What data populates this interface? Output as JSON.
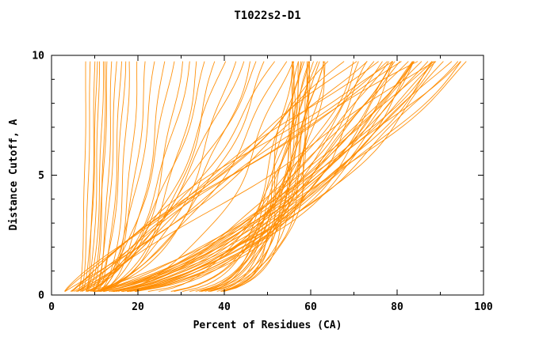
{
  "chart_data": {
    "type": "line",
    "title": "T1022s2-D1",
    "xlabel": "Percent of Residues (CA)",
    "ylabel": "Distance Cutoff, A",
    "xlim": [
      0,
      100
    ],
    "ylim": [
      0,
      10
    ],
    "x_major_ticks": [
      0,
      20,
      40,
      60,
      80,
      100
    ],
    "x_minor_step": 10,
    "y_major_ticks": [
      0,
      5,
      10
    ],
    "y_minor_step": 1,
    "grid": false,
    "legend": "none",
    "line_color": "#FF8C00",
    "background": "#FFFFFF",
    "curve_model": "Family of ~94 model GDT curves. Each entry is [x_start, x_end, shape]; x(y) = x_start + (x_end - x_start) * (y / 9.75)^shape for y in [0.15, 9.75].",
    "curves": [
      [
        2.8,
        8,
        0.1
      ],
      [
        3.0,
        9,
        0.12
      ],
      [
        3.2,
        10,
        0.09
      ],
      [
        2.6,
        10.5,
        0.14
      ],
      [
        3.1,
        11,
        0.11
      ],
      [
        2.9,
        12,
        0.13
      ],
      [
        3.3,
        12.5,
        0.1
      ],
      [
        2.7,
        13,
        0.15
      ],
      [
        3.0,
        14,
        0.12
      ],
      [
        3.2,
        15,
        0.16
      ],
      [
        2.8,
        16,
        0.13
      ],
      [
        3.1,
        17,
        0.18
      ],
      [
        2.9,
        18,
        0.14
      ],
      [
        3.0,
        20,
        0.17
      ],
      [
        3.0,
        22,
        0.22
      ],
      [
        3.2,
        24,
        0.3
      ],
      [
        2.8,
        26,
        0.25
      ],
      [
        3.1,
        28,
        0.35
      ],
      [
        2.9,
        30,
        0.28
      ],
      [
        3.3,
        32,
        0.4
      ],
      [
        3.0,
        34,
        0.32
      ],
      [
        2.7,
        36,
        0.45
      ],
      [
        3.1,
        38,
        0.36
      ],
      [
        3.2,
        40,
        0.5
      ],
      [
        2.9,
        42,
        0.38
      ],
      [
        3.0,
        44,
        0.55
      ],
      [
        3.2,
        46,
        0.42
      ],
      [
        2.8,
        48,
        0.6
      ],
      [
        3.1,
        50,
        0.46
      ],
      [
        3.0,
        52,
        0.65
      ],
      [
        2.9,
        54,
        0.5
      ],
      [
        3.2,
        55,
        0.35
      ],
      [
        3.0,
        55,
        0.1
      ],
      [
        3.1,
        56,
        0.12
      ],
      [
        2.9,
        56.5,
        0.09
      ],
      [
        3.2,
        57,
        0.13
      ],
      [
        3.0,
        57.5,
        0.1
      ],
      [
        2.8,
        58,
        0.14
      ],
      [
        3.1,
        58.5,
        0.11
      ],
      [
        3.0,
        59,
        0.12
      ],
      [
        3.2,
        59.5,
        0.1
      ],
      [
        2.9,
        60,
        0.13
      ],
      [
        3.0,
        60.5,
        0.11
      ],
      [
        3.1,
        61,
        0.14
      ],
      [
        2.8,
        61.5,
        0.12
      ],
      [
        3.0,
        62,
        0.15
      ],
      [
        3.2,
        62.5,
        0.11
      ],
      [
        3.0,
        63,
        0.13
      ],
      [
        2.9,
        58,
        0.18
      ],
      [
        3.1,
        59,
        0.2
      ],
      [
        3.0,
        60,
        0.17
      ],
      [
        3.2,
        61,
        0.19
      ],
      [
        2.9,
        62,
        0.16
      ],
      [
        3.0,
        57,
        0.21
      ],
      [
        3.0,
        70,
        0.35
      ],
      [
        3.2,
        72,
        0.42
      ],
      [
        2.9,
        74,
        0.38
      ],
      [
        3.1,
        75,
        0.48
      ],
      [
        3.0,
        76,
        0.33
      ],
      [
        2.8,
        77,
        0.45
      ],
      [
        3.2,
        78,
        0.4
      ],
      [
        3.0,
        79,
        0.52
      ],
      [
        2.9,
        80,
        0.36
      ],
      [
        3.1,
        80.5,
        0.47
      ],
      [
        3.0,
        81,
        0.42
      ],
      [
        3.2,
        82,
        0.55
      ],
      [
        2.8,
        82.5,
        0.38
      ],
      [
        3.0,
        83,
        0.5
      ],
      [
        3.1,
        84,
        0.44
      ],
      [
        2.9,
        84.5,
        0.58
      ],
      [
        3.0,
        85,
        0.41
      ],
      [
        3.2,
        86,
        0.53
      ],
      [
        3.0,
        86.5,
        0.46
      ],
      [
        2.9,
        87,
        0.6
      ],
      [
        3.1,
        88,
        0.43
      ],
      [
        3.0,
        88.5,
        0.56
      ],
      [
        3.2,
        89,
        0.48
      ],
      [
        2.8,
        90,
        0.62
      ],
      [
        3.0,
        91,
        0.45
      ],
      [
        3.1,
        92,
        0.58
      ],
      [
        2.9,
        93,
        0.5
      ],
      [
        3.0,
        94,
        0.65
      ],
      [
        3.1,
        95,
        0.55
      ],
      [
        3.0,
        97,
        0.6
      ],
      [
        3.0,
        65,
        0.8
      ],
      [
        3.2,
        68,
        0.9
      ],
      [
        2.9,
        70,
        1.0
      ],
      [
        3.1,
        72,
        0.85
      ],
      [
        3.0,
        75,
        1.1
      ],
      [
        2.8,
        78,
        0.95
      ],
      [
        3.1,
        80,
        1.2
      ],
      [
        3.0,
        82,
        1.05
      ],
      [
        2.9,
        85,
        1.15
      ],
      [
        3.0,
        88,
        0.9
      ]
    ]
  }
}
